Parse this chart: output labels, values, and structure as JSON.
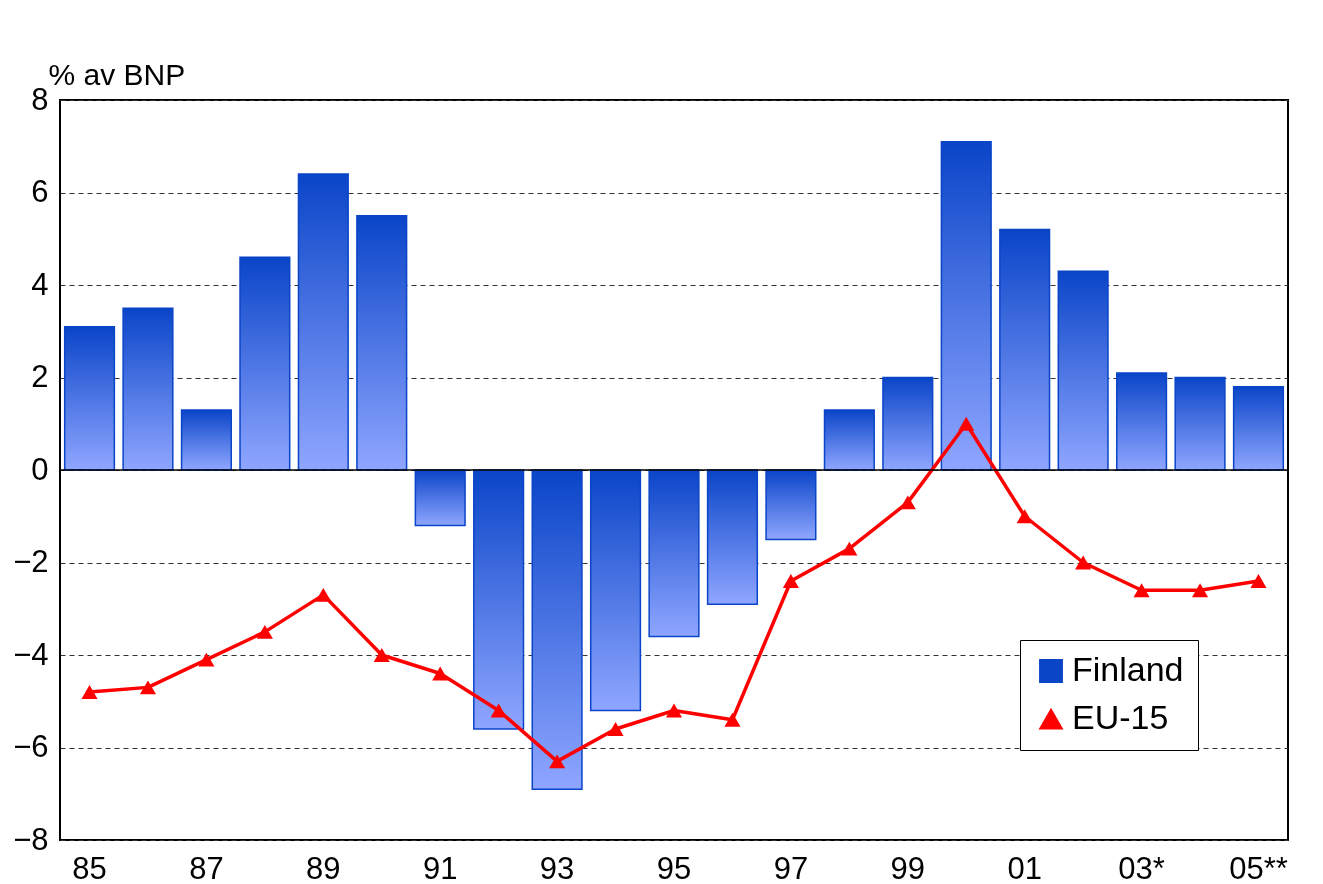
{
  "chart_data": {
    "type": "bar",
    "ylabel": "% av BNP",
    "categories": [
      "85",
      null,
      "87",
      null,
      "89",
      null,
      "91",
      null,
      "93",
      null,
      "95",
      null,
      "97",
      null,
      "99",
      null,
      "01",
      null,
      "03*",
      null,
      "05**"
    ],
    "series": [
      {
        "name": "Finland",
        "color": "#0a45c8",
        "values": [
          3.1,
          3.5,
          1.3,
          4.6,
          6.4,
          5.5,
          -1.2,
          -5.6,
          -6.9,
          -5.2,
          -3.6,
          -2.9,
          -1.5,
          1.3,
          2.0,
          7.1,
          5.2,
          4.3,
          2.1,
          2.0,
          1.8
        ]
      },
      {
        "name": "EU-15",
        "type": "line",
        "color": "#ff0000",
        "marker": "triangle",
        "values": [
          -4.8,
          -4.7,
          -4.1,
          -3.5,
          -2.7,
          -4.0,
          -4.4,
          -5.2,
          -6.3,
          -5.6,
          -5.2,
          -5.4,
          -2.4,
          -1.7,
          -0.7,
          1.0,
          -1.0,
          -2.0,
          -2.6,
          -2.6,
          -2.4
        ]
      }
    ],
    "ylim": [
      -8,
      8
    ],
    "yticks": [
      -8,
      -6,
      -4,
      -2,
      0,
      2,
      4,
      6,
      8
    ],
    "grid": "y",
    "legend": "bottom right"
  }
}
